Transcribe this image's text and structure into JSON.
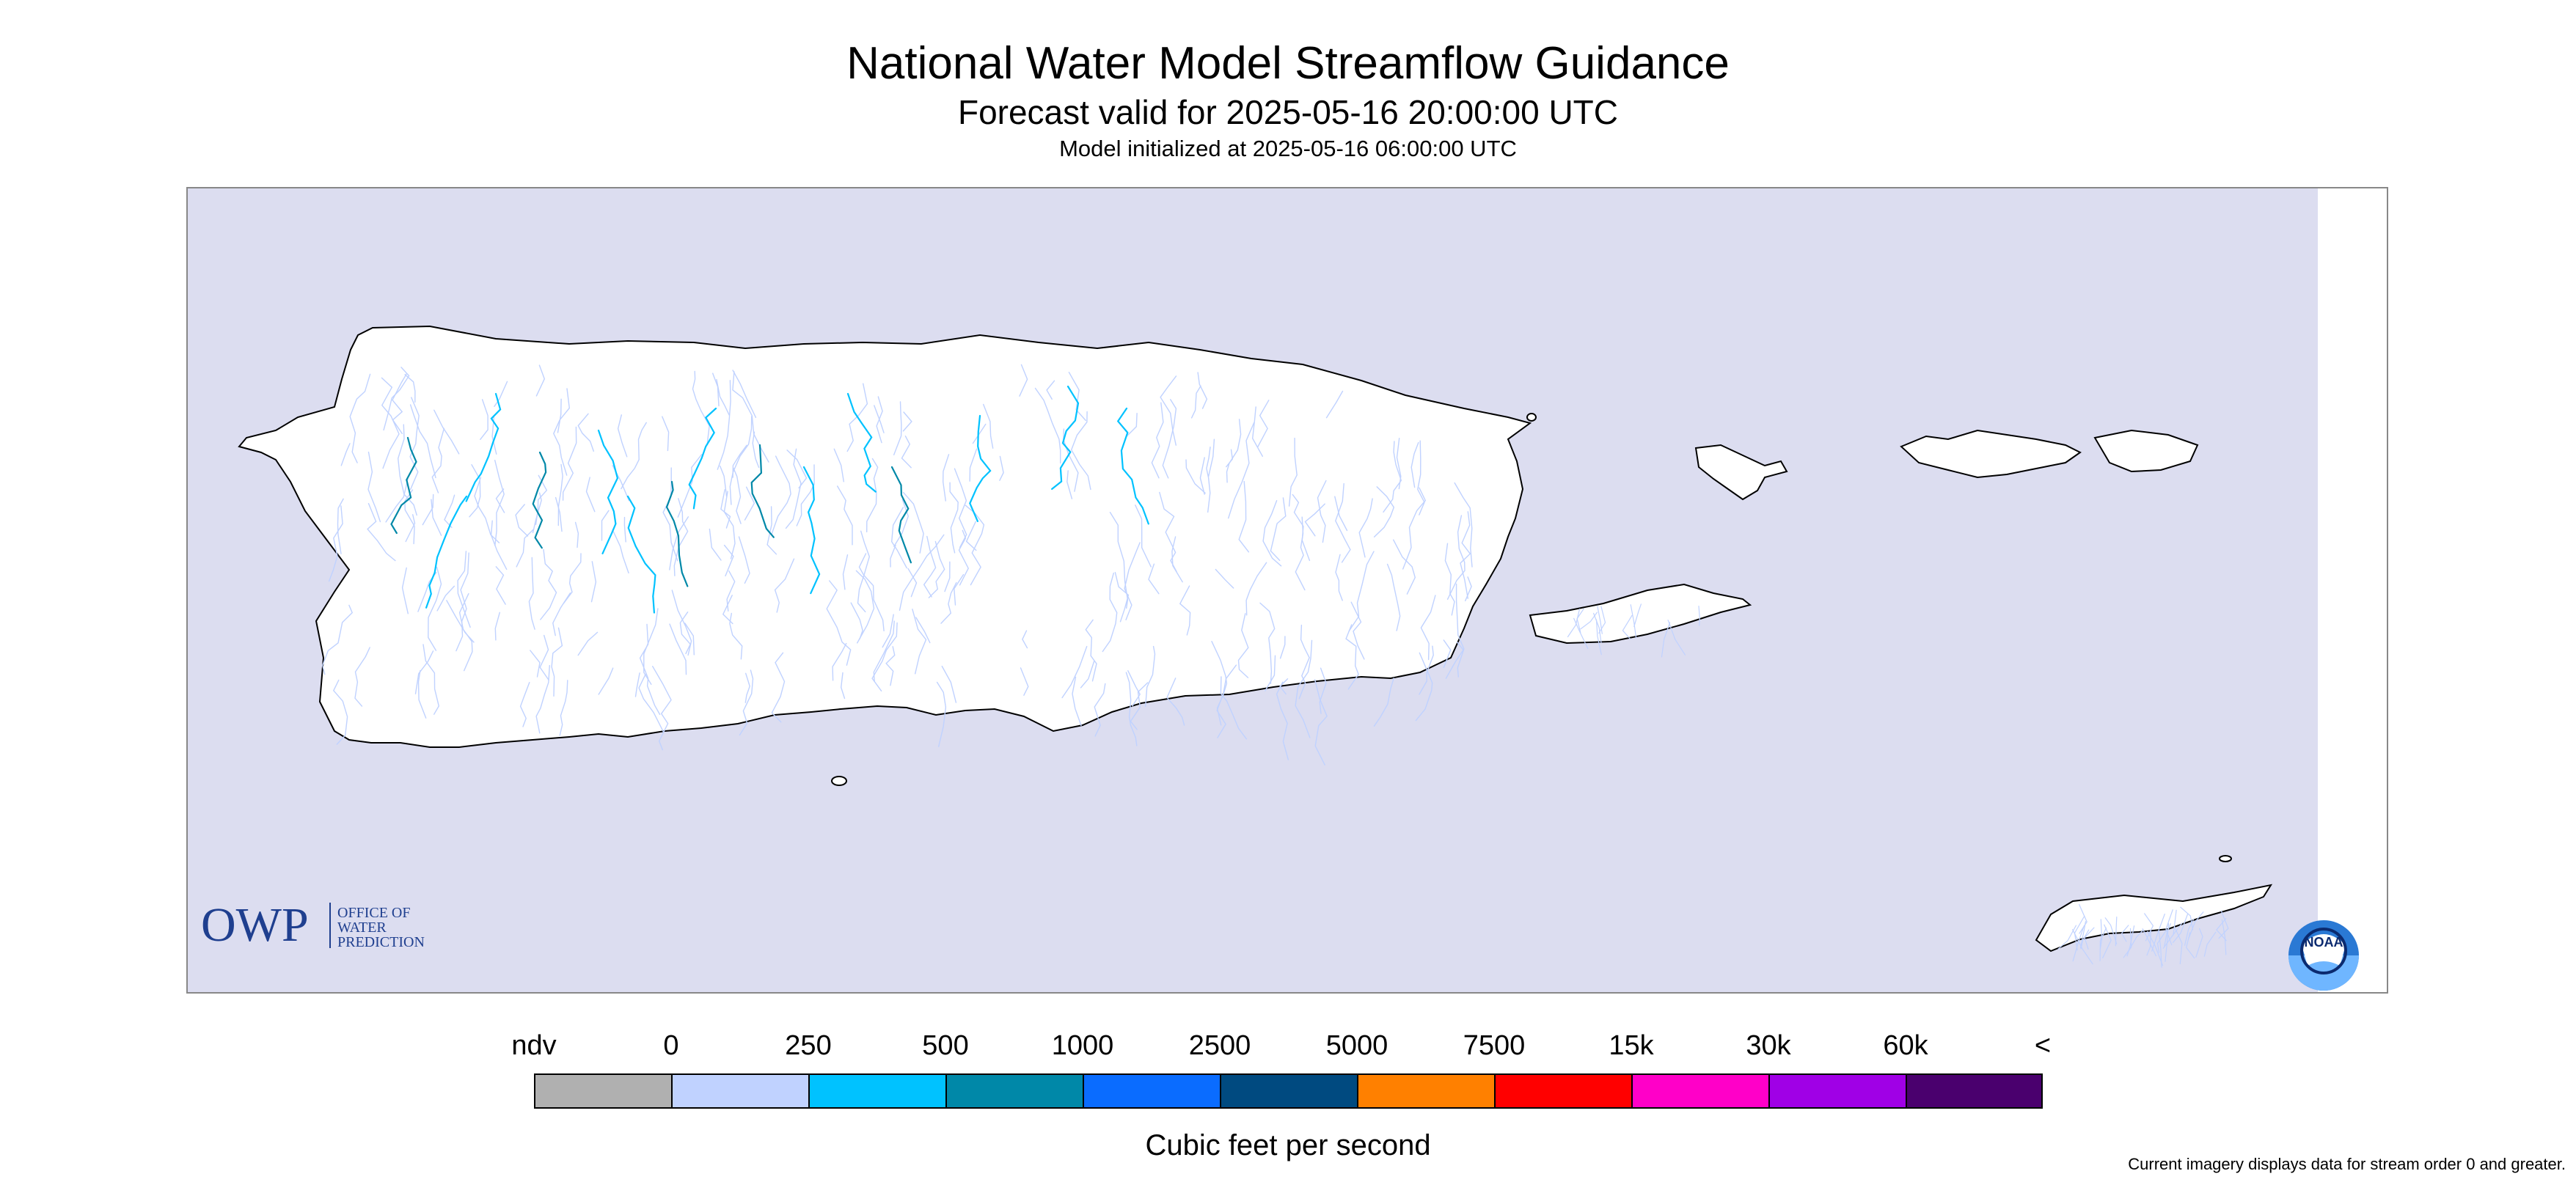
{
  "header": {
    "title": "National Water Model Streamflow Guidance",
    "forecast_valid": "Forecast valid for 2025-05-16 20:00:00 UTC",
    "model_init": "Model initialized at 2025-05-16 06:00:00 UTC"
  },
  "map": {
    "ocean_color": "#dcddf0",
    "land_color": "#ffffff",
    "coast_color": "#000000",
    "stream_color_low": "#c0d2ff",
    "owp_logo": {
      "abbr": "OWP",
      "line1": "OFFICE OF",
      "line2": "WATER",
      "line3": "PREDICTION",
      "color": "#1f3f8f"
    },
    "noaa_logo": {
      "text": "NOAA"
    }
  },
  "legend": {
    "labels": [
      "ndv",
      "0",
      "250",
      "500",
      "1000",
      "2500",
      "5000",
      "7500",
      "15k",
      "30k",
      "60k",
      "<"
    ],
    "colors": [
      "#b0b0b0",
      "#c0d2ff",
      "#00c2ff",
      "#0088a8",
      "#0a6cff",
      "#004a80",
      "#ff8000",
      "#ff0000",
      "#ff00c8",
      "#a000e6",
      "#4a006e"
    ],
    "units": "Cubic feet per second"
  },
  "footnote": "Current imagery displays data for stream order 0 and greater."
}
